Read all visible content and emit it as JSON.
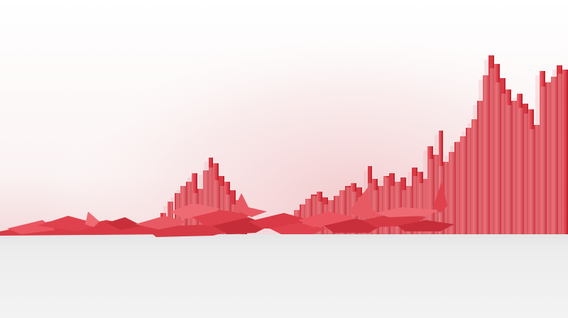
{
  "scene": {
    "description_colors": {
      "background_top": "#ffffff",
      "background_glow": "#f6d9da",
      "floor": "#ededee",
      "floor_shadow": "#dcdcdd",
      "paper_red": "#e0424d",
      "paper_red_light": "#ef6a73",
      "paper_red_dark": "#b8252f",
      "paper_red_shadow": "#9e1d26"
    }
  }
}
